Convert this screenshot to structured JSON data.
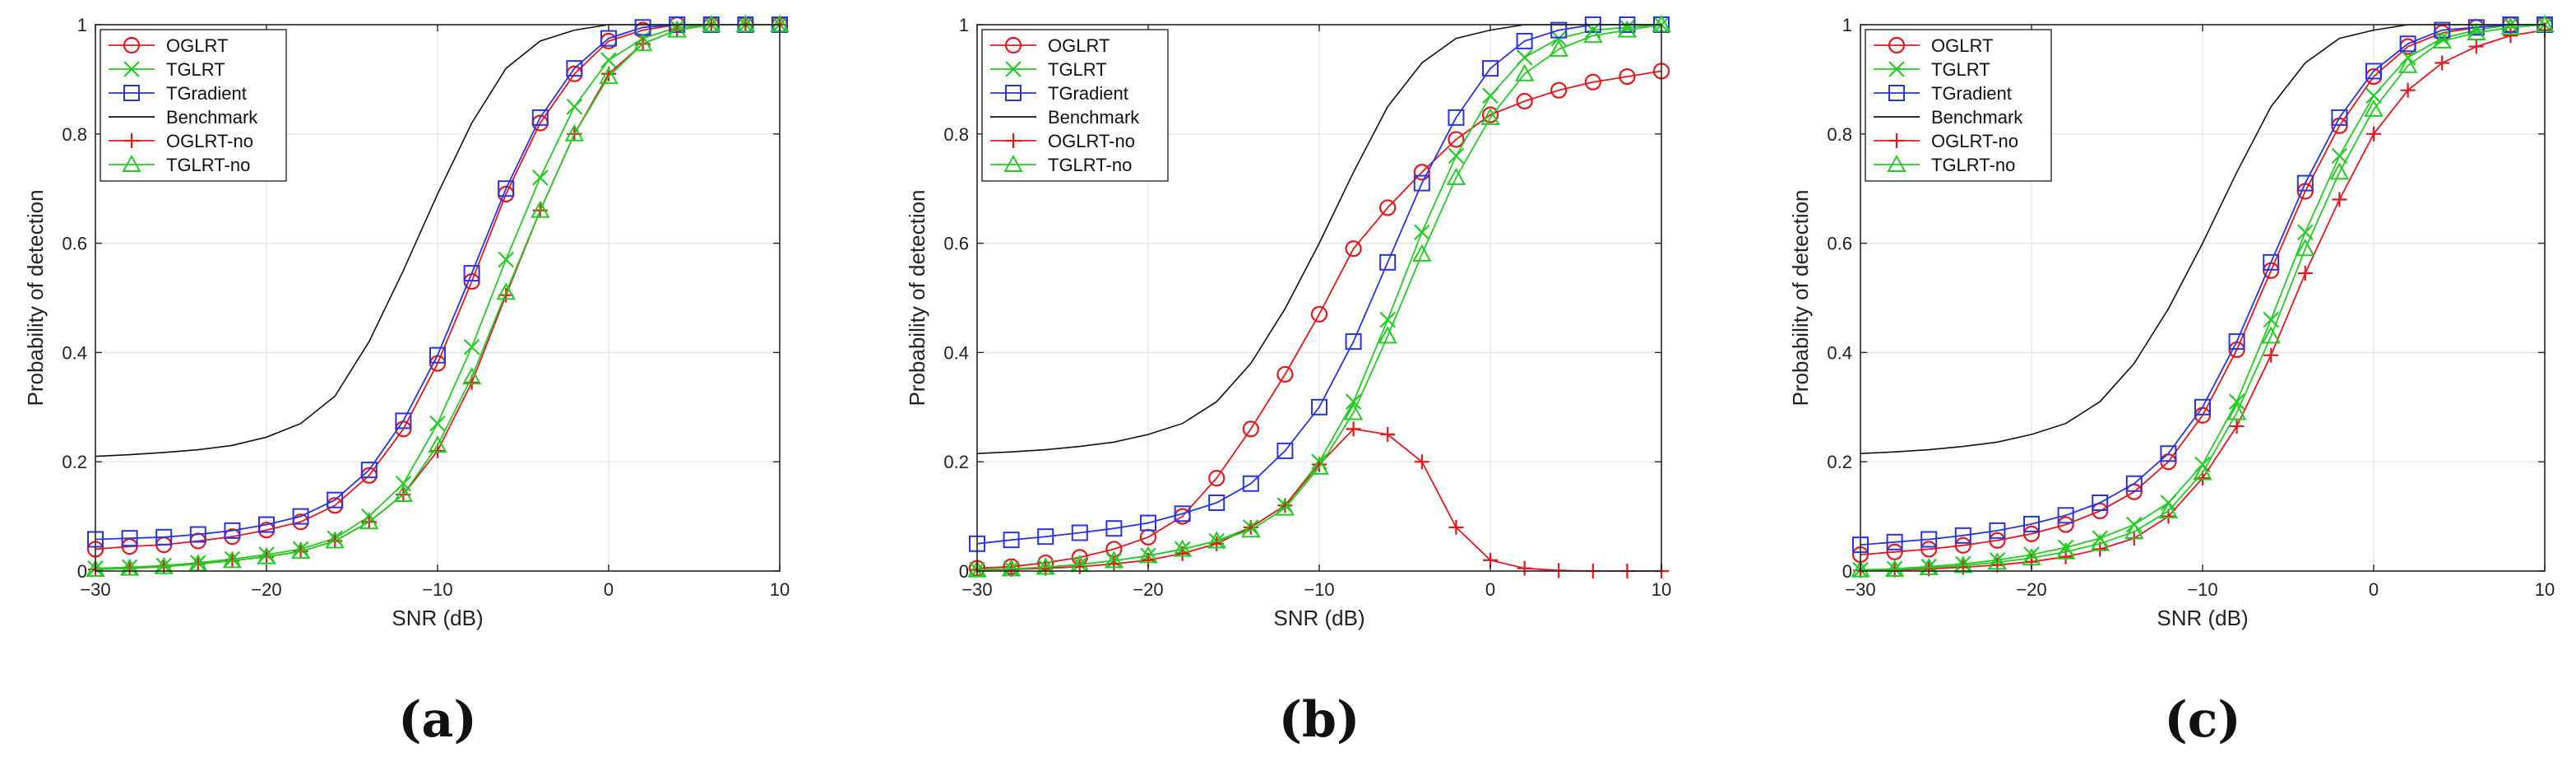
{
  "figure": {
    "panel_labels": [
      "(a)",
      "(b)",
      "(c)"
    ]
  },
  "styles": {
    "OGLRT": {
      "color": "#e8161b",
      "marker": "circle"
    },
    "TGLRT": {
      "color": "#22cc22",
      "marker": "x"
    },
    "TGradient": {
      "color": "#2733e6",
      "marker": "square"
    },
    "Benchmark": {
      "color": "#111111",
      "marker": "none"
    },
    "OGLRT-no": {
      "color": "#e8161b",
      "marker": "plus"
    },
    "TGLRT-no": {
      "color": "#22cc22",
      "marker": "triangle"
    }
  },
  "chart_data": [
    {
      "type": "line",
      "panel": "(a)",
      "title": "",
      "xlabel": "SNR (dB)",
      "ylabel": "Probability of detection",
      "xlim": [
        -30,
        10
      ],
      "ylim": [
        0,
        1
      ],
      "xticks": [
        -30,
        -20,
        -10,
        0,
        10
      ],
      "yticks": [
        0,
        0.2,
        0.4,
        0.6,
        0.8,
        1
      ],
      "grid": true,
      "legend_position": "top-left",
      "x": [
        -30,
        -28,
        -26,
        -24,
        -22,
        -20,
        -18,
        -16,
        -14,
        -12,
        -10,
        -8,
        -6,
        -4,
        -2,
        0,
        2,
        4,
        6,
        8,
        10
      ],
      "series": [
        {
          "name": "OGLRT",
          "values": [
            0.04,
            0.045,
            0.048,
            0.055,
            0.063,
            0.075,
            0.09,
            0.12,
            0.175,
            0.26,
            0.38,
            0.53,
            0.69,
            0.82,
            0.91,
            0.97,
            0.99,
            1,
            1,
            1,
            1
          ]
        },
        {
          "name": "TGLRT",
          "values": [
            0.005,
            0.007,
            0.01,
            0.015,
            0.022,
            0.03,
            0.04,
            0.06,
            0.1,
            0.16,
            0.27,
            0.41,
            0.57,
            0.72,
            0.85,
            0.935,
            0.975,
            0.995,
            1,
            1,
            1
          ]
        },
        {
          "name": "TGradient",
          "values": [
            0.058,
            0.06,
            0.062,
            0.067,
            0.074,
            0.085,
            0.1,
            0.13,
            0.185,
            0.275,
            0.395,
            0.545,
            0.7,
            0.83,
            0.92,
            0.975,
            0.995,
            1,
            1,
            1,
            1
          ]
        },
        {
          "name": "Benchmark",
          "values": [
            0.21,
            0.213,
            0.217,
            0.222,
            0.23,
            0.245,
            0.27,
            0.32,
            0.42,
            0.55,
            0.69,
            0.82,
            0.92,
            0.97,
            0.99,
            1,
            1,
            1,
            1,
            1,
            1
          ]
        },
        {
          "name": "OGLRT-no",
          "values": [
            0.003,
            0.005,
            0.008,
            0.013,
            0.019,
            0.026,
            0.036,
            0.055,
            0.09,
            0.14,
            0.22,
            0.345,
            0.505,
            0.66,
            0.8,
            0.91,
            0.965,
            0.99,
            1,
            1,
            1
          ]
        },
        {
          "name": "TGLRT-no",
          "values": [
            0.003,
            0.005,
            0.008,
            0.013,
            0.019,
            0.026,
            0.036,
            0.055,
            0.09,
            0.14,
            0.23,
            0.355,
            0.51,
            0.66,
            0.8,
            0.905,
            0.965,
            0.99,
            1,
            1,
            1
          ]
        }
      ]
    },
    {
      "type": "line",
      "panel": "(b)",
      "title": "",
      "xlabel": "SNR (dB)",
      "ylabel": "Probability of detection",
      "xlim": [
        -30,
        10
      ],
      "ylim": [
        0,
        1
      ],
      "xticks": [
        -30,
        -20,
        -10,
        0,
        10
      ],
      "yticks": [
        0,
        0.2,
        0.4,
        0.6,
        0.8,
        1
      ],
      "grid": true,
      "legend_position": "top-left",
      "x": [
        -30,
        -28,
        -26,
        -24,
        -22,
        -20,
        -18,
        -16,
        -14,
        -12,
        -10,
        -8,
        -6,
        -4,
        -2,
        0,
        2,
        4,
        6,
        8,
        10
      ],
      "series": [
        {
          "name": "OGLRT",
          "values": [
            0.005,
            0.008,
            0.015,
            0.025,
            0.04,
            0.062,
            0.1,
            0.17,
            0.26,
            0.36,
            0.47,
            0.59,
            0.665,
            0.73,
            0.79,
            0.835,
            0.86,
            0.88,
            0.895,
            0.905,
            0.915
          ]
        },
        {
          "name": "TGLRT",
          "values": [
            0.002,
            0.004,
            0.007,
            0.012,
            0.019,
            0.028,
            0.04,
            0.055,
            0.08,
            0.12,
            0.2,
            0.31,
            0.46,
            0.62,
            0.76,
            0.87,
            0.94,
            0.975,
            0.99,
            0.995,
            1
          ]
        },
        {
          "name": "TGradient",
          "values": [
            0.05,
            0.057,
            0.063,
            0.07,
            0.078,
            0.088,
            0.105,
            0.125,
            0.16,
            0.22,
            0.3,
            0.42,
            0.565,
            0.71,
            0.83,
            0.92,
            0.97,
            0.99,
            1,
            1,
            1
          ]
        },
        {
          "name": "Benchmark",
          "values": [
            0.215,
            0.218,
            0.222,
            0.228,
            0.236,
            0.25,
            0.27,
            0.31,
            0.38,
            0.48,
            0.6,
            0.73,
            0.85,
            0.93,
            0.975,
            0.99,
            1,
            1,
            1,
            1,
            1
          ]
        },
        {
          "name": "OGLRT-no",
          "values": [
            0.002,
            0.003,
            0.005,
            0.008,
            0.013,
            0.02,
            0.032,
            0.05,
            0.08,
            0.12,
            0.195,
            0.26,
            0.25,
            0.2,
            0.08,
            0.02,
            0.005,
            0.001,
            0,
            0,
            0
          ]
        },
        {
          "name": "TGLRT-no",
          "values": [
            0.002,
            0.004,
            0.007,
            0.012,
            0.019,
            0.028,
            0.04,
            0.055,
            0.075,
            0.115,
            0.19,
            0.29,
            0.43,
            0.58,
            0.72,
            0.83,
            0.91,
            0.955,
            0.98,
            0.99,
            1
          ]
        }
      ]
    },
    {
      "type": "line",
      "panel": "(c)",
      "title": "",
      "xlabel": "SNR (dB)",
      "ylabel": "Probability of detection",
      "xlim": [
        -30,
        10
      ],
      "ylim": [
        0,
        1
      ],
      "xticks": [
        -30,
        -20,
        -10,
        0,
        10
      ],
      "yticks": [
        0,
        0.2,
        0.4,
        0.6,
        0.8,
        1
      ],
      "grid": true,
      "legend_position": "top-left",
      "x": [
        -30,
        -28,
        -26,
        -24,
        -22,
        -20,
        -18,
        -16,
        -14,
        -12,
        -10,
        -8,
        -6,
        -4,
        -2,
        0,
        2,
        4,
        6,
        8,
        10
      ],
      "series": [
        {
          "name": "OGLRT",
          "values": [
            0.03,
            0.035,
            0.04,
            0.047,
            0.056,
            0.068,
            0.085,
            0.11,
            0.145,
            0.2,
            0.285,
            0.405,
            0.55,
            0.695,
            0.815,
            0.905,
            0.96,
            0.985,
            0.995,
            1,
            1
          ]
        },
        {
          "name": "TGLRT",
          "values": [
            0.002,
            0.004,
            0.008,
            0.013,
            0.02,
            0.03,
            0.043,
            0.06,
            0.085,
            0.125,
            0.195,
            0.31,
            0.46,
            0.62,
            0.76,
            0.87,
            0.94,
            0.975,
            0.99,
            1,
            1
          ]
        },
        {
          "name": "TGradient",
          "values": [
            0.048,
            0.053,
            0.058,
            0.065,
            0.074,
            0.086,
            0.102,
            0.125,
            0.16,
            0.215,
            0.3,
            0.42,
            0.565,
            0.71,
            0.83,
            0.915,
            0.965,
            0.99,
            0.995,
            1,
            1
          ]
        },
        {
          "name": "Benchmark",
          "values": [
            0.215,
            0.218,
            0.222,
            0.228,
            0.236,
            0.25,
            0.27,
            0.31,
            0.38,
            0.48,
            0.6,
            0.73,
            0.85,
            0.93,
            0.975,
            0.99,
            1,
            1,
            1,
            1,
            1
          ]
        },
        {
          "name": "OGLRT-no",
          "values": [
            0.001,
            0.002,
            0.004,
            0.007,
            0.011,
            0.017,
            0.026,
            0.04,
            0.06,
            0.1,
            0.17,
            0.265,
            0.395,
            0.545,
            0.68,
            0.8,
            0.88,
            0.93,
            0.96,
            0.98,
            0.99
          ]
        },
        {
          "name": "TGLRT-no",
          "values": [
            0.002,
            0.003,
            0.006,
            0.01,
            0.016,
            0.024,
            0.035,
            0.05,
            0.072,
            0.11,
            0.18,
            0.29,
            0.43,
            0.59,
            0.73,
            0.845,
            0.925,
            0.97,
            0.985,
            0.995,
            1
          ]
        }
      ]
    }
  ]
}
